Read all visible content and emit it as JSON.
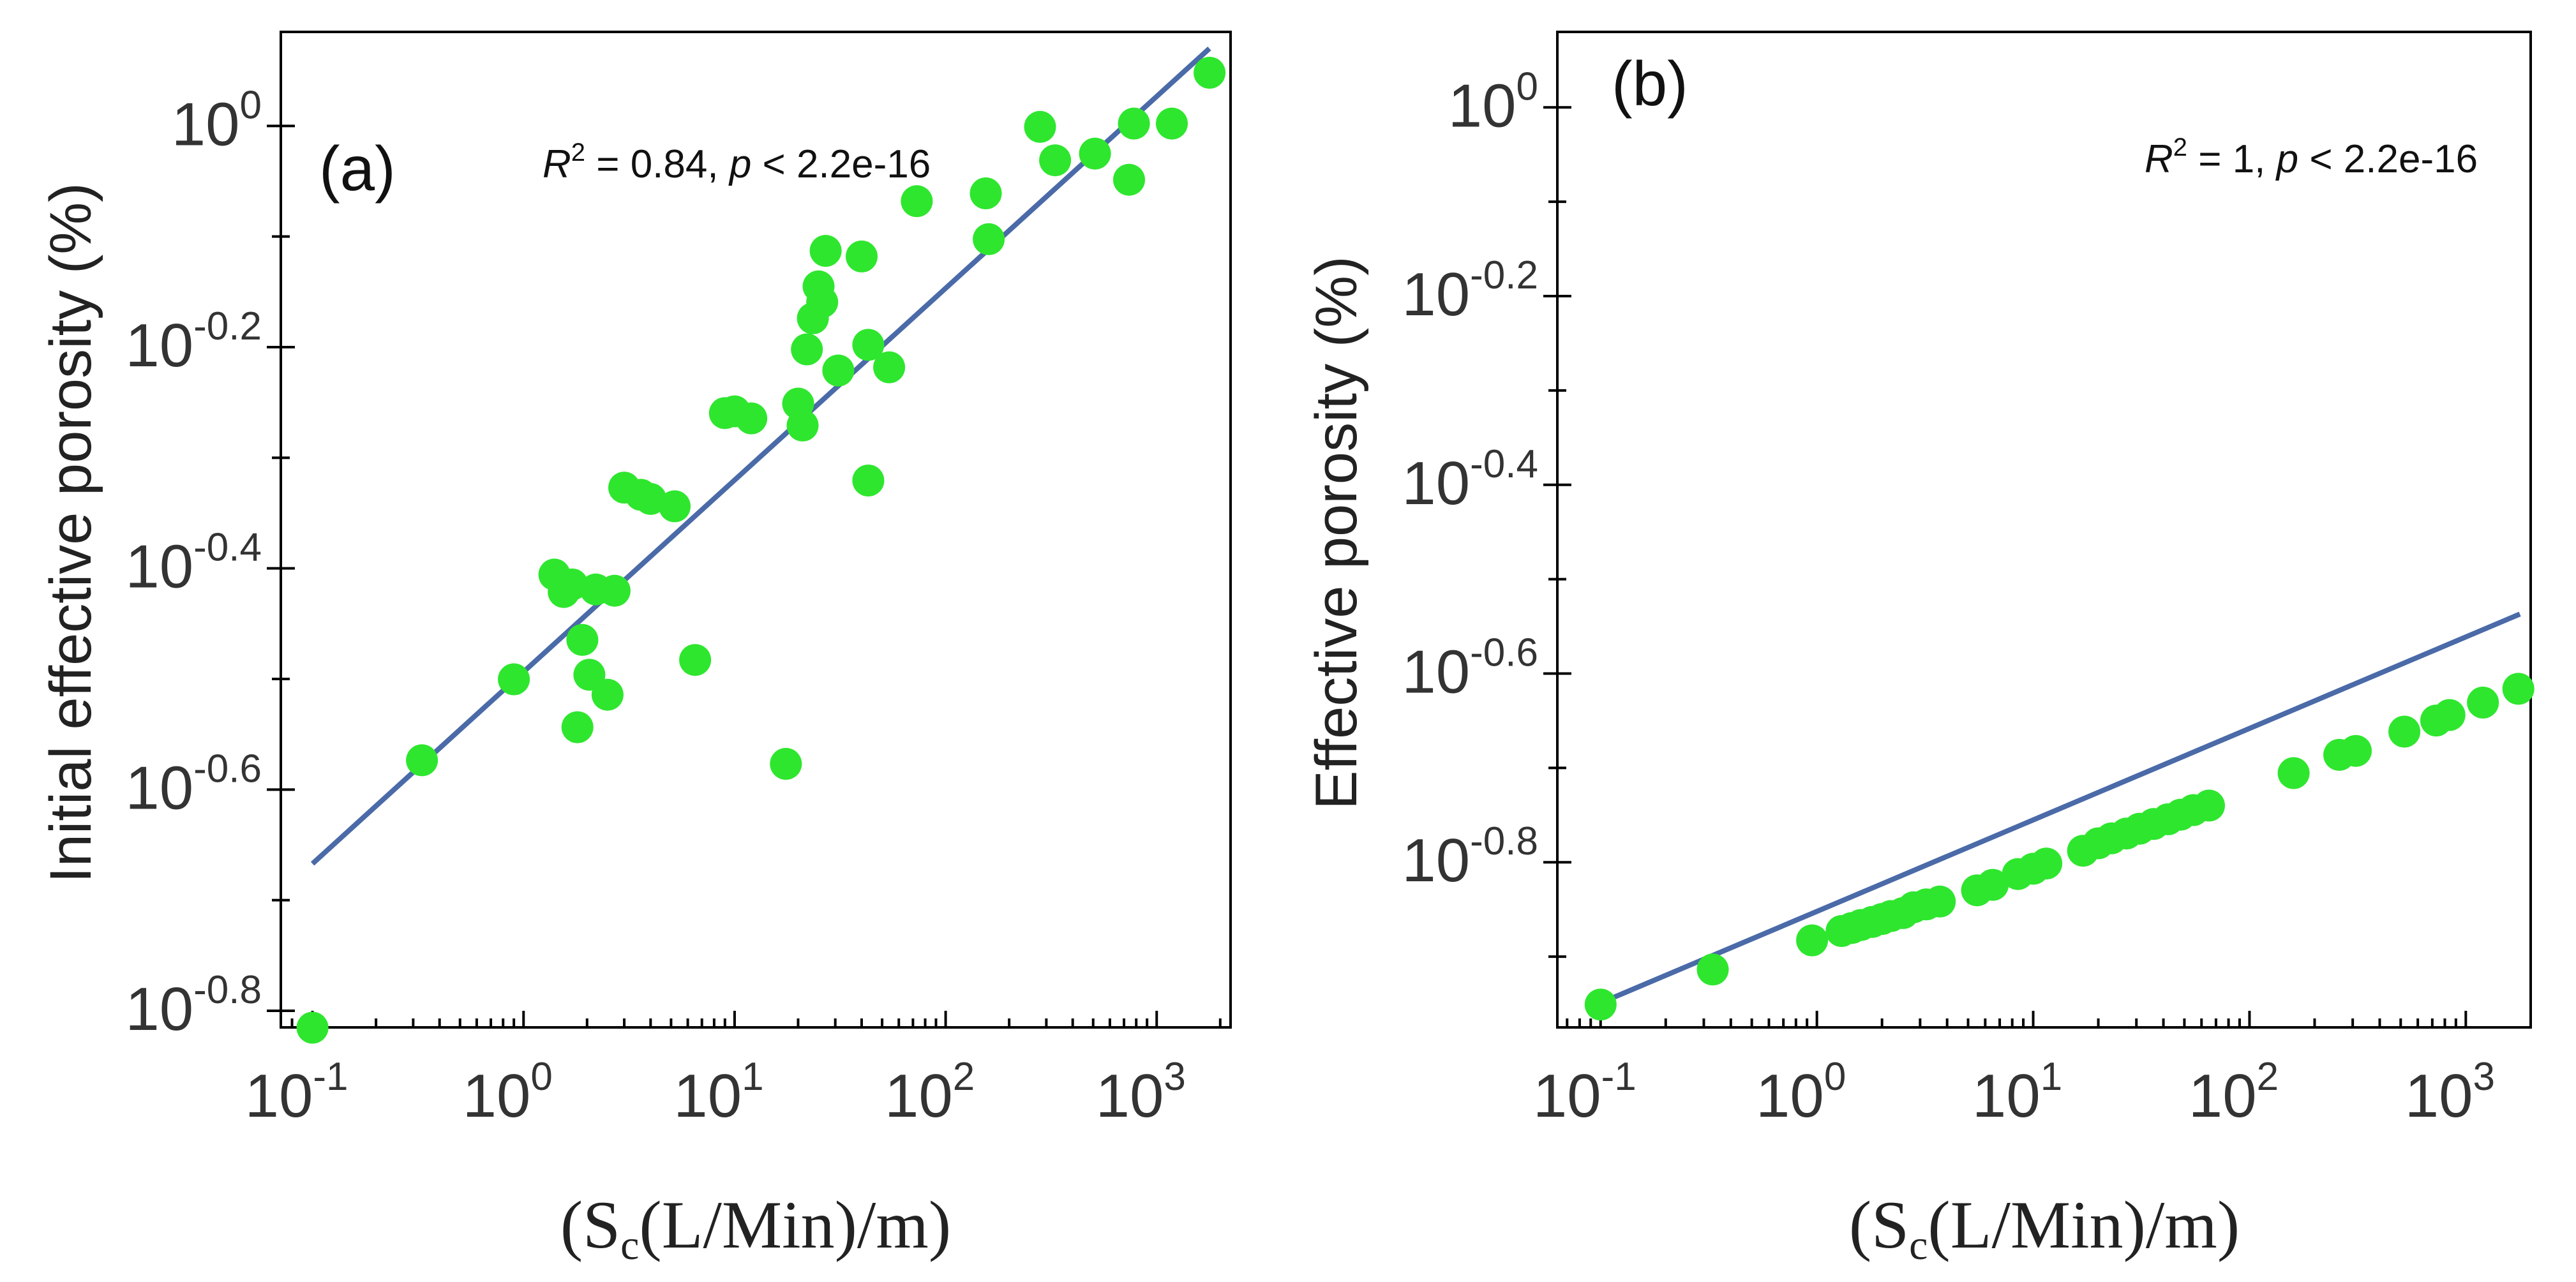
{
  "chart_data": [
    {
      "type": "scatter",
      "panel": "(a)",
      "stat_text": {
        "r_symbol": "R",
        "r_exp": "2",
        "r_value": " = 0.84, ",
        "p_symbol": "p",
        "p_value": " < 2.2e-16"
      },
      "ylabel": "Initial effective porosity (%)",
      "xlabel": {
        "open": "(S",
        "sub": "c",
        "rest": "(L/Min)/m)"
      },
      "xscale": "log10",
      "yscale": "log10",
      "xlim_log": [
        -1.15,
        3.35
      ],
      "ylim_log": [
        -0.815,
        0.085
      ],
      "xticks": [
        {
          "base": "10",
          "exp": "-1",
          "log": -1
        },
        {
          "base": "10",
          "exp": "0",
          "log": 0
        },
        {
          "base": "10",
          "exp": "1",
          "log": 1
        },
        {
          "base": "10",
          "exp": "2",
          "log": 2
        },
        {
          "base": "10",
          "exp": "3",
          "log": 3
        }
      ],
      "yticks": [
        {
          "base": "10",
          "exp": "0",
          "log": 0
        },
        {
          "base": "10",
          "exp": "-0.2",
          "log": -0.2
        },
        {
          "base": "10",
          "exp": "-0.4",
          "log": -0.4
        },
        {
          "base": "10",
          "exp": "-0.6",
          "log": -0.6
        },
        {
          "base": "10",
          "exp": "-0.8",
          "log": -0.8
        }
      ],
      "ytick_minor_log": [
        -0.1,
        -0.3,
        -0.5,
        -0.7
      ],
      "fit_line_log": [
        [
          -1.0,
          -0.667
        ],
        [
          3.25,
          0.07
        ]
      ],
      "points": [
        [
          0.1,
          0.153
        ],
        [
          0.33,
          0.267
        ],
        [
          0.9,
          0.316
        ],
        [
          1.4,
          0.393
        ],
        [
          1.55,
          0.379
        ],
        [
          1.7,
          0.385
        ],
        [
          1.8,
          0.286
        ],
        [
          1.9,
          0.343
        ],
        [
          2.05,
          0.319
        ],
        [
          2.2,
          0.381
        ],
        [
          2.5,
          0.306
        ],
        [
          2.7,
          0.38
        ],
        [
          3.0,
          0.471
        ],
        [
          3.6,
          0.464
        ],
        [
          4.0,
          0.46
        ],
        [
          5.2,
          0.453
        ],
        [
          6.5,
          0.329
        ],
        [
          9.0,
          0.55
        ],
        [
          10.0,
          0.552
        ],
        [
          12.0,
          0.544
        ],
        [
          17.5,
          0.265
        ],
        [
          20.0,
          0.561
        ],
        [
          21.0,
          0.536
        ],
        [
          22.0,
          0.628
        ],
        [
          23.5,
          0.67
        ],
        [
          25.0,
          0.716
        ],
        [
          26.0,
          0.693
        ],
        [
          27.0,
          0.771
        ],
        [
          31.0,
          0.601
        ],
        [
          40.0,
          0.762
        ],
        [
          43.0,
          0.478
        ],
        [
          43.0,
          0.634
        ],
        [
          54.0,
          0.605
        ],
        [
          73.0,
          0.855
        ],
        [
          155.0,
          0.869
        ],
        [
          160.0,
          0.79
        ],
        [
          280.0,
          0.998
        ],
        [
          330.0,
          0.931
        ],
        [
          510.0,
          0.944
        ],
        [
          740.0,
          0.894
        ],
        [
          780.0,
          1.005
        ],
        [
          1180.0,
          1.005
        ],
        [
          1780.0,
          1.117
        ]
      ]
    },
    {
      "type": "scatter",
      "panel": "(b)",
      "stat_text": {
        "r_symbol": "R",
        "r_exp": "2",
        "r_value": " = 1, ",
        "p_symbol": "p",
        "p_value": " < 2.2e-16"
      },
      "ylabel": "Effective porosity (%)",
      "xlabel": {
        "open": "(S",
        "sub": "c",
        "rest": "(L/Min)/m)"
      },
      "xscale": "log10",
      "yscale": "log10",
      "xlim_log": [
        -1.2,
        3.3
      ],
      "ylim_log": [
        -0.975,
        0.08
      ],
      "xticks": [
        {
          "base": "10",
          "exp": "-1",
          "log": -1
        },
        {
          "base": "10",
          "exp": "0",
          "log": 0
        },
        {
          "base": "10",
          "exp": "1",
          "log": 1
        },
        {
          "base": "10",
          "exp": "2",
          "log": 2
        },
        {
          "base": "10",
          "exp": "3",
          "log": 3
        }
      ],
      "yticks": [
        {
          "base": "10",
          "exp": "0",
          "log": 0
        },
        {
          "base": "10",
          "exp": "-0.2",
          "log": -0.2
        },
        {
          "base": "10",
          "exp": "-0.4",
          "log": -0.4
        },
        {
          "base": "10",
          "exp": "-0.6",
          "log": -0.6
        },
        {
          "base": "10",
          "exp": "-0.8",
          "log": -0.8
        }
      ],
      "ytick_minor_log": [
        -0.1,
        -0.3,
        -0.5,
        -0.7,
        -0.9
      ],
      "fit_line_log": [
        [
          -1.0,
          -0.949
        ],
        [
          3.25,
          -0.537
        ]
      ],
      "points": [
        [
          0.1,
          0.112
        ],
        [
          0.33,
          0.122
        ],
        [
          0.95,
          0.131
        ],
        [
          1.3,
          0.134
        ],
        [
          1.45,
          0.135
        ],
        [
          1.6,
          0.136
        ],
        [
          1.8,
          0.137
        ],
        [
          2.0,
          0.138
        ],
        [
          2.2,
          0.139
        ],
        [
          2.5,
          0.14
        ],
        [
          2.8,
          0.142
        ],
        [
          3.2,
          0.143
        ],
        [
          3.7,
          0.144
        ],
        [
          5.5,
          0.148
        ],
        [
          6.5,
          0.15
        ],
        [
          8.5,
          0.154
        ],
        [
          10.0,
          0.156
        ],
        [
          11.5,
          0.158
        ],
        [
          17.0,
          0.163
        ],
        [
          20.0,
          0.166
        ],
        [
          23.0,
          0.168
        ],
        [
          27.0,
          0.17
        ],
        [
          31.0,
          0.172
        ],
        [
          36.0,
          0.174
        ],
        [
          42.0,
          0.176
        ],
        [
          48.0,
          0.178
        ],
        [
          55.0,
          0.18
        ],
        [
          65.0,
          0.182
        ],
        [
          160.0,
          0.197
        ],
        [
          260.0,
          0.206
        ],
        [
          310.0,
          0.208
        ],
        [
          520.0,
          0.218
        ],
        [
          730.0,
          0.224
        ],
        [
          840.0,
          0.227
        ],
        [
          1200.0,
          0.234
        ],
        [
          1750.0,
          0.242
        ]
      ]
    }
  ]
}
